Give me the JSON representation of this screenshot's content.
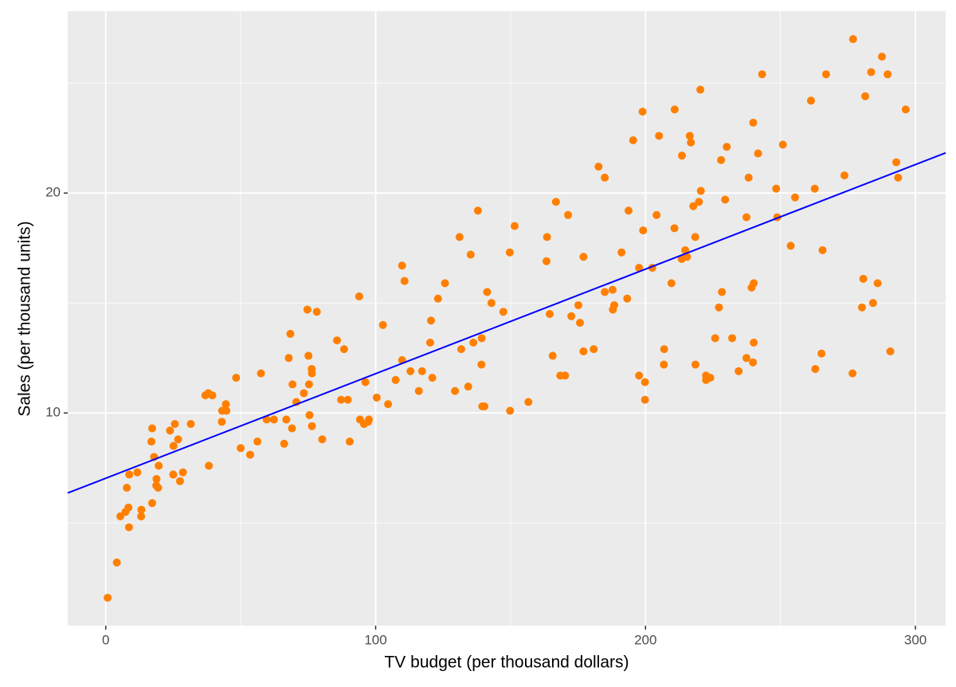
{
  "chart_data": {
    "type": "scatter",
    "x_label": "TV budget (per thousand dollars)",
    "y_label": "Sales (per thousand units)",
    "color": "#ff7f00",
    "xlim": [
      -14.1,
      311.2
    ],
    "ylim": [
      0.33,
      28.27
    ],
    "xticks": [
      0,
      100,
      200,
      300
    ],
    "yticks": [
      10,
      20
    ],
    "x_minor_grid": [
      50,
      150,
      250
    ],
    "y_minor_grid": [
      5,
      15,
      25
    ],
    "grid": true,
    "regression": {
      "intercept": 7.0326,
      "slope": 0.04754,
      "color": "#0000ff"
    },
    "x": [
      230.1,
      44.5,
      17.2,
      151.5,
      180.8,
      8.7,
      57.5,
      120.2,
      8.6,
      199.8,
      66.1,
      214.7,
      23.8,
      97.5,
      204.1,
      195.4,
      67.8,
      281.4,
      69.2,
      147.3,
      218.4,
      237.4,
      13.2,
      228.3,
      62.3,
      262.9,
      142.9,
      240.1,
      248.8,
      70.6,
      292.9,
      112.9,
      97.2,
      265.6,
      95.7,
      290.7,
      266.9,
      74.7,
      43.1,
      228,
      202.5,
      177,
      293.6,
      206.9,
      25.1,
      175.1,
      89.7,
      239.9,
      227.2,
      66.9,
      199.8,
      100.4,
      216.4,
      182.6,
      262.7,
      198.9,
      7.3,
      136.2,
      210.8,
      210.7,
      53.5,
      261.3,
      239.3,
      102.7,
      131.1,
      69,
      31.5,
      139.3,
      237.4,
      216.8,
      199.1,
      109.8,
      26.8,
      129.4,
      213.4,
      16.9,
      27.5,
      120.5,
      5.4,
      116,
      76.4,
      239.8,
      75.3,
      68.4,
      213.5,
      193.2,
      76.3,
      110.7,
      88.3,
      109.8,
      134.3,
      28.6,
      217.7,
      250.9,
      107.4,
      163.3,
      197.6,
      184.9,
      289.7,
      135.2,
      222.4,
      296.4,
      280.2,
      187.9,
      238.2,
      137.9,
      25,
      90.4,
      13.1,
      255.4,
      225.8,
      241.7,
      175.7,
      209.6,
      78.2,
      75.1,
      139.2,
      76.4,
      125.7,
      19.4,
      141.3,
      18.8,
      224,
      123.1,
      229.5,
      87.2,
      7.8,
      80.2,
      220.3,
      59.6,
      0.7,
      265.2,
      8.4,
      219.8,
      36.9,
      48.3,
      25.6,
      273.7,
      43,
      184.9,
      73.4,
      193.7,
      220.5,
      104.6,
      96.2,
      140.3,
      240.1,
      243.2,
      38,
      44.7,
      280.7,
      121,
      197.6,
      171.3,
      187.8,
      4.1,
      93.9,
      149.8,
      11.7,
      131.7,
      172.5,
      85.7,
      188.4,
      163.5,
      117.2,
      234.5,
      17.9,
      206.8,
      215.4,
      284.3,
      50,
      164.5,
      19.6,
      168.4,
      222.4,
      276.9,
      248.4,
      170.2,
      276.7,
      165.6,
      156.6,
      218.5,
      56.2,
      287.6,
      253.8,
      205,
      139.5,
      191.1,
      286,
      18.7,
      39.5,
      75.5,
      17.2,
      166.8,
      149.7,
      38.2,
      94.2,
      177,
      283.6,
      232.1
    ],
    "values": [
      22.1,
      10.4,
      9.3,
      18.5,
      12.9,
      7.2,
      11.8,
      13.2,
      4.8,
      10.6,
      8.6,
      17.4,
      9.2,
      9.7,
      19,
      22.4,
      12.5,
      24.4,
      11.3,
      14.6,
      18,
      12.5,
      5.6,
      15.5,
      9.7,
      12,
      15,
      15.9,
      18.9,
      10.5,
      21.4,
      11.9,
      9.6,
      17.4,
      9.5,
      12.8,
      25.4,
      14.7,
      10.1,
      21.5,
      16.6,
      17.1,
      20.7,
      12.9,
      8.5,
      14.9,
      10.6,
      23.2,
      14.8,
      9.7,
      11.4,
      10.7,
      22.6,
      21.2,
      20.2,
      23.7,
      5.5,
      13.2,
      23.8,
      18.4,
      8.1,
      24.2,
      15.7,
      14,
      18,
      9.3,
      9.5,
      13.4,
      18.9,
      22.3,
      18.3,
      12.4,
      8.8,
      11,
      17,
      8.7,
      6.9,
      14.2,
      5.3,
      11,
      11.8,
      12.3,
      11.3,
      13.6,
      21.7,
      15.2,
      12,
      16,
      12.9,
      16.7,
      11.2,
      7.3,
      19.4,
      22.2,
      11.5,
      16.9,
      11.7,
      15.5,
      25.4,
      17.2,
      11.7,
      23.8,
      14.8,
      14.7,
      20.7,
      19.2,
      7.2,
      8.7,
      5.3,
      19.8,
      13.4,
      21.8,
      14.1,
      15.9,
      14.6,
      12.6,
      12.2,
      9.4,
      15.9,
      6.6,
      15.5,
      7,
      11.6,
      15.2,
      19.7,
      10.6,
      6.6,
      8.8,
      24.7,
      9.7,
      1.6,
      12.7,
      5.7,
      19.6,
      10.8,
      11.6,
      9.5,
      20.8,
      9.6,
      20.7,
      10.9,
      19.2,
      20.1,
      10.4,
      11.4,
      10.3,
      13.2,
      25.4,
      10.9,
      10.1,
      16.1,
      11.6,
      16.6,
      19,
      15.6,
      3.2,
      15.3,
      10.1,
      7.3,
      12.9,
      14.4,
      13.3,
      14.9,
      18,
      11.9,
      11.9,
      8,
      12.2,
      17.1,
      15,
      8.4,
      14.5,
      7.6,
      11.7,
      11.5,
      27,
      20.2,
      11.7,
      11.8,
      12.6,
      10.5,
      12.2,
      8.7,
      26.2,
      17.6,
      22.6,
      10.3,
      17.3,
      15.9,
      6.7,
      10.8,
      9.9,
      5.9,
      19.6,
      17.3,
      7.6,
      9.7,
      12.8,
      25.5,
      13.4
    ]
  }
}
